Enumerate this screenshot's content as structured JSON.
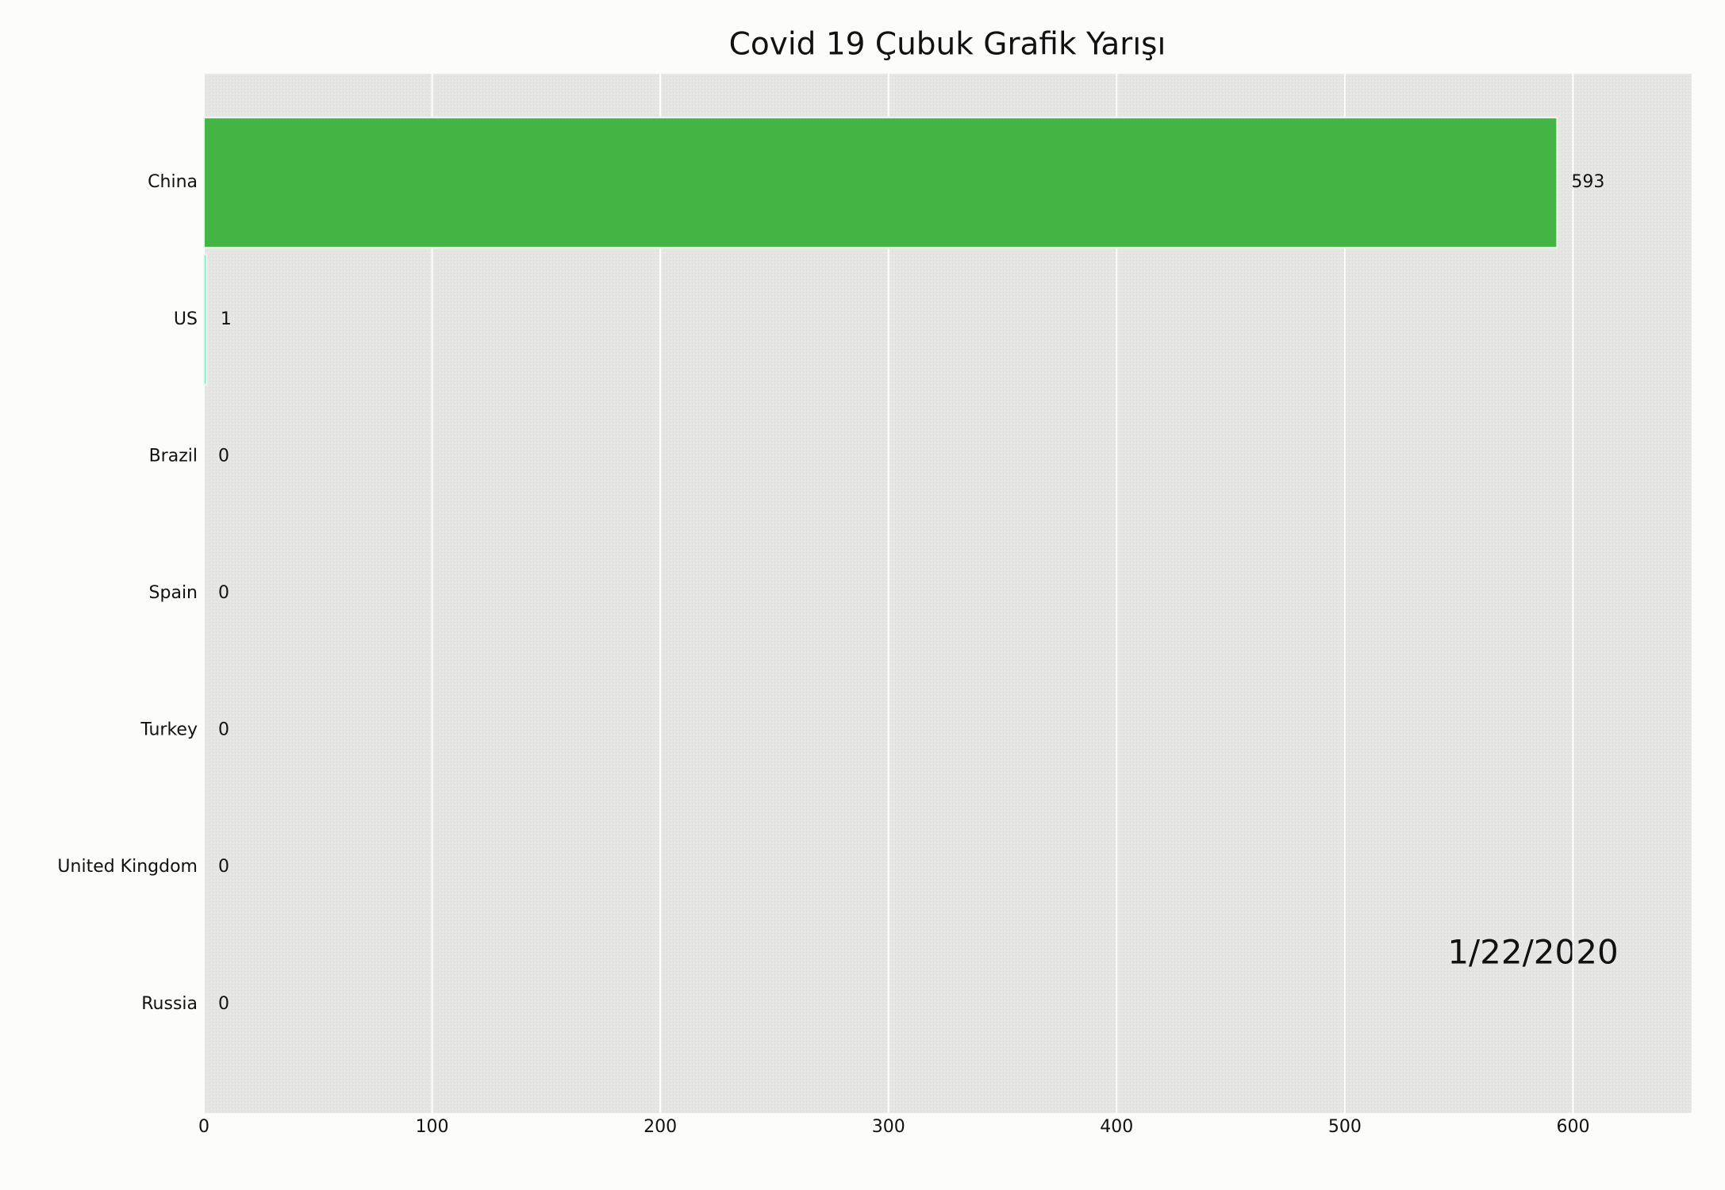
{
  "chart_data": {
    "type": "barh",
    "title": "Covid 19 Çubuk Grafik Yarışı",
    "categories": [
      "China",
      "US",
      "Brazil",
      "Spain",
      "Turkey",
      "United Kingdom",
      "Russia"
    ],
    "values": [
      593,
      1,
      0,
      0,
      0,
      0,
      0
    ],
    "colors": [
      "#44b444",
      "#6fd4b8",
      "#d9a3b4",
      "#9fc3e0",
      "#e8a36b",
      "#b7a3dd",
      "#e0d070"
    ],
    "xlim": [
      0,
      652
    ],
    "xticks": [
      0,
      100,
      200,
      300,
      400,
      500,
      600
    ],
    "grid": true,
    "annotation": "1/22/2020"
  }
}
